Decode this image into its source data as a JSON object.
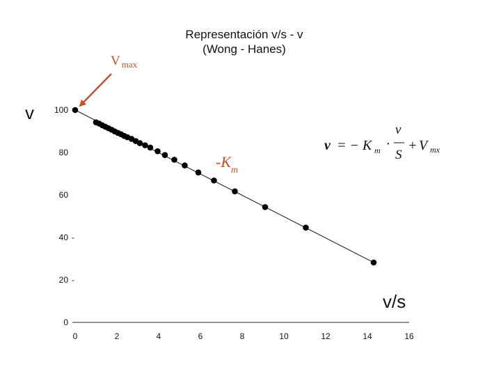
{
  "chart_data": {
    "type": "scatter",
    "title": "Representación v/s - v",
    "subtitle": "(Wong - Hanes)",
    "xlabel": "v/s",
    "ylabel": "v",
    "xlim": [
      0,
      16
    ],
    "ylim": [
      0,
      100
    ],
    "xticks": [
      0,
      2,
      4,
      6,
      8,
      10,
      12,
      14,
      16
    ],
    "yticks": [
      0,
      20,
      40,
      60,
      80,
      100
    ],
    "ytick_dash": "-",
    "points": [
      {
        "x": 0.0,
        "y": 100.0
      },
      {
        "x": 1.0,
        "y": 94.2
      },
      {
        "x": 1.15,
        "y": 93.6
      },
      {
        "x": 1.3,
        "y": 92.8
      },
      {
        "x": 1.45,
        "y": 92.1
      },
      {
        "x": 1.6,
        "y": 91.4
      },
      {
        "x": 1.75,
        "y": 90.7
      },
      {
        "x": 1.9,
        "y": 89.9
      },
      {
        "x": 2.05,
        "y": 89.2
      },
      {
        "x": 2.2,
        "y": 88.6
      },
      {
        "x": 2.35,
        "y": 87.8
      },
      {
        "x": 2.5,
        "y": 87.2
      },
      {
        "x": 2.7,
        "y": 86.4
      },
      {
        "x": 2.9,
        "y": 85.4
      },
      {
        "x": 3.1,
        "y": 84.4
      },
      {
        "x": 3.35,
        "y": 83.4
      },
      {
        "x": 3.6,
        "y": 82.3
      },
      {
        "x": 3.95,
        "y": 80.6
      },
      {
        "x": 4.3,
        "y": 78.8
      },
      {
        "x": 4.75,
        "y": 76.6
      },
      {
        "x": 5.25,
        "y": 73.9
      },
      {
        "x": 5.9,
        "y": 70.6
      },
      {
        "x": 6.65,
        "y": 66.8
      },
      {
        "x": 7.65,
        "y": 61.7
      },
      {
        "x": 9.1,
        "y": 54.3
      },
      {
        "x": 11.05,
        "y": 44.6
      },
      {
        "x": 14.3,
        "y": 28.2
      }
    ],
    "fit_line": {
      "x": [
        0,
        14.3
      ],
      "y": [
        100,
        28.2
      ]
    },
    "annotations": {
      "vmax_main": "V",
      "vmax_sub": "max",
      "km_main": "-K",
      "km_sub": "m",
      "equation": {
        "lhs": "v",
        "equals": "= −",
        "k": "K",
        "k_sub": "m",
        "dot": "·",
        "frac_num": "v",
        "frac_den": "S",
        "plus": "+",
        "vmx": "V",
        "vmx_sub": "mx"
      }
    }
  },
  "colors": {
    "accent": "#c8502a",
    "ink": "#111111"
  }
}
